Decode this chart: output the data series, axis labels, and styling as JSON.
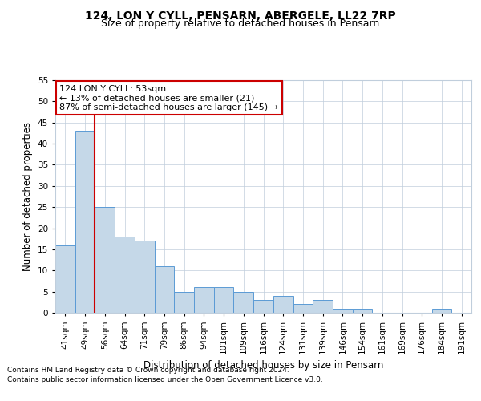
{
  "title": "124, LON Y CYLL, PENSARN, ABERGELE, LL22 7RP",
  "subtitle": "Size of property relative to detached houses in Pensarn",
  "xlabel": "Distribution of detached houses by size in Pensarn",
  "ylabel": "Number of detached properties",
  "categories": [
    "41sqm",
    "49sqm",
    "56sqm",
    "64sqm",
    "71sqm",
    "79sqm",
    "86sqm",
    "94sqm",
    "101sqm",
    "109sqm",
    "116sqm",
    "124sqm",
    "131sqm",
    "139sqm",
    "146sqm",
    "154sqm",
    "161sqm",
    "169sqm",
    "176sqm",
    "184sqm",
    "191sqm"
  ],
  "values": [
    16,
    43,
    25,
    18,
    17,
    11,
    5,
    6,
    6,
    5,
    3,
    4,
    2,
    3,
    1,
    1,
    0,
    0,
    0,
    1,
    0
  ],
  "bar_color": "#c5d8e8",
  "bar_edge_color": "#5b9bd5",
  "vline_x": 1.5,
  "vline_color": "#cc0000",
  "annotation_text": "124 LON Y CYLL: 53sqm\n← 13% of detached houses are smaller (21)\n87% of semi-detached houses are larger (145) →",
  "annotation_box_color": "white",
  "annotation_box_edge": "#cc0000",
  "ylim": [
    0,
    55
  ],
  "yticks": [
    0,
    5,
    10,
    15,
    20,
    25,
    30,
    35,
    40,
    45,
    50,
    55
  ],
  "footer_line1": "Contains HM Land Registry data © Crown copyright and database right 2024.",
  "footer_line2": "Contains public sector information licensed under the Open Government Licence v3.0.",
  "title_fontsize": 10,
  "subtitle_fontsize": 9,
  "tick_fontsize": 7.5,
  "label_fontsize": 8.5,
  "background_color": "#ffffff",
  "grid_color": "#c0cedc"
}
